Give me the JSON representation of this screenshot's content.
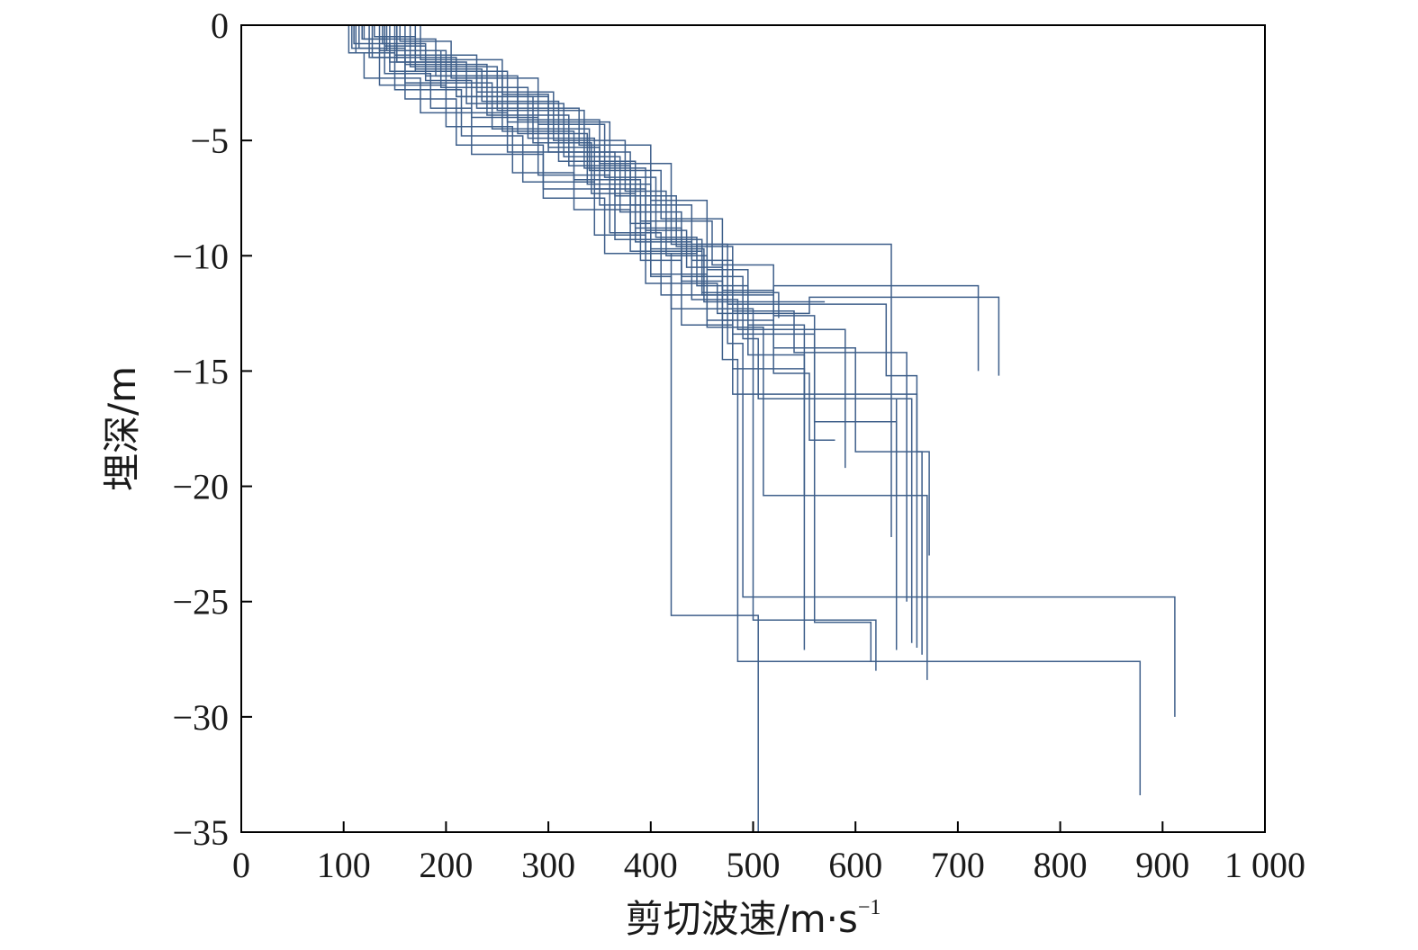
{
  "chart_data": {
    "type": "line",
    "title": "",
    "xlabel": "剪切波速/m·s",
    "xlabel_exponent": "−1",
    "ylabel": "埋深/m",
    "xlim": [
      0,
      1000
    ],
    "ylim": [
      -35,
      0
    ],
    "x_ticks": [
      0,
      100,
      200,
      300,
      400,
      500,
      600,
      700,
      800,
      900,
      1000
    ],
    "x_tick_labels": [
      "0",
      "100",
      "200",
      "300",
      "400",
      "500",
      "600",
      "700",
      "800",
      "900",
      "1 000"
    ],
    "y_ticks": [
      0,
      -5,
      -10,
      -15,
      -20,
      -25,
      -30,
      -35
    ],
    "y_tick_labels": [
      "0",
      "−5",
      "−10",
      "−15",
      "−20",
      "−25",
      "−30",
      "−35"
    ],
    "grid": false,
    "series_color": "#3e5f8a",
    "series": [
      {
        "layers": [
          [
            105,
            0
          ],
          [
            120,
            -1.2
          ],
          [
            175,
            -2.3
          ],
          [
            260,
            -3.8
          ],
          [
            380,
            -5.5
          ],
          [
            440,
            -7.8
          ],
          [
            480,
            -10.2
          ],
          [
            560,
            -13.4
          ],
          [
            640,
            -17.2
          ],
          [
            670,
            -20.4
          ],
          [
            670,
            -28.4
          ]
        ]
      },
      {
        "layers": [
          [
            110,
            0
          ],
          [
            145,
            -0.8
          ],
          [
            230,
            -2.0
          ],
          [
            330,
            -3.6
          ],
          [
            400,
            -5.2
          ],
          [
            455,
            -7.6
          ],
          [
            495,
            -10.6
          ],
          [
            550,
            -13.0
          ],
          [
            655,
            -16.2
          ],
          [
            655,
            -26.8
          ]
        ]
      },
      {
        "layers": [
          [
            115,
            0
          ],
          [
            160,
            -1.0
          ],
          [
            245,
            -2.5
          ],
          [
            340,
            -4.5
          ],
          [
            410,
            -6.3
          ],
          [
            470,
            -8.4
          ],
          [
            520,
            -11.5
          ],
          [
            600,
            -14.0
          ],
          [
            665,
            -18.5
          ],
          [
            665,
            -27.3
          ]
        ]
      },
      {
        "layers": [
          [
            120,
            0
          ],
          [
            190,
            -0.6
          ],
          [
            270,
            -2.2
          ],
          [
            350,
            -4.1
          ],
          [
            420,
            -6.0
          ],
          [
            475,
            -9.5
          ],
          [
            630,
            -12.1
          ],
          [
            660,
            -15.2
          ],
          [
            672,
            -18.5
          ],
          [
            672,
            -23.0
          ]
        ]
      },
      {
        "layers": [
          [
            125,
            0
          ],
          [
            210,
            -1.4
          ],
          [
            300,
            -3.1
          ],
          [
            365,
            -5.5
          ],
          [
            425,
            -7.4
          ],
          [
            480,
            -9.6
          ],
          [
            540,
            -12.4
          ],
          [
            650,
            -14.2
          ],
          [
            650,
            -25.0
          ]
        ]
      },
      {
        "layers": [
          [
            135,
            0
          ],
          [
            200,
            -1.1
          ],
          [
            280,
            -2.7
          ],
          [
            345,
            -4.9
          ],
          [
            395,
            -7.1
          ],
          [
            445,
            -9.9
          ],
          [
            635,
            -9.5
          ],
          [
            635,
            -22.2
          ]
        ]
      },
      {
        "layers": [
          [
            130,
            0
          ],
          [
            170,
            -0.5
          ],
          [
            235,
            -1.9
          ],
          [
            310,
            -3.3
          ],
          [
            385,
            -5.9
          ],
          [
            430,
            -8.8
          ],
          [
            490,
            -10.9
          ],
          [
            505,
            -13.6
          ],
          [
            640,
            -16.2
          ],
          [
            640,
            -27.1
          ]
        ]
      },
      {
        "layers": [
          [
            140,
            0
          ],
          [
            180,
            -0.9
          ],
          [
            225,
            -2.4
          ],
          [
            290,
            -4.0
          ],
          [
            360,
            -6.5
          ],
          [
            410,
            -9.0
          ],
          [
            475,
            -11.7
          ],
          [
            490,
            -13.8
          ],
          [
            825,
            -24.8
          ],
          [
            912,
            -24.8
          ],
          [
            912,
            -30.0
          ]
        ]
      },
      {
        "layers": [
          [
            145,
            0
          ],
          [
            220,
            -1.6
          ],
          [
            315,
            -3.4
          ],
          [
            370,
            -5.7
          ],
          [
            430,
            -8.1
          ],
          [
            470,
            -11.1
          ],
          [
            485,
            -14.5
          ],
          [
            485,
            -27.6
          ],
          [
            878,
            -27.6
          ],
          [
            878,
            -33.4
          ]
        ]
      },
      {
        "layers": [
          [
            150,
            0
          ],
          [
            230,
            -1.3
          ],
          [
            305,
            -2.9
          ],
          [
            375,
            -5.0
          ],
          [
            415,
            -7.2
          ],
          [
            455,
            -10.0
          ],
          [
            480,
            -12.8
          ],
          [
            500,
            -16.0
          ],
          [
            660,
            -16.0
          ],
          [
            660,
            -27.0
          ]
        ]
      },
      {
        "layers": [
          [
            155,
            0
          ],
          [
            205,
            -0.7
          ],
          [
            290,
            -2.3
          ],
          [
            355,
            -4.3
          ],
          [
            405,
            -6.6
          ],
          [
            445,
            -9.2
          ],
          [
            495,
            -11.3
          ],
          [
            550,
            -14.3
          ],
          [
            550,
            -27.1
          ]
        ]
      },
      {
        "layers": [
          [
            160,
            0
          ],
          [
            240,
            -1.7
          ],
          [
            320,
            -3.9
          ],
          [
            380,
            -6.1
          ],
          [
            400,
            -8.6
          ],
          [
            420,
            -10.9
          ],
          [
            420,
            -25.6
          ],
          [
            505,
            -25.6
          ],
          [
            505,
            -35
          ]
        ]
      },
      {
        "layers": [
          [
            165,
            0
          ],
          [
            250,
            -1.8
          ],
          [
            335,
            -3.7
          ],
          [
            395,
            -6.2
          ],
          [
            435,
            -8.9
          ],
          [
            470,
            -10.5
          ],
          [
            520,
            -12.8
          ],
          [
            555,
            -15.1
          ],
          [
            580,
            -18.0
          ]
        ]
      },
      {
        "layers": [
          [
            170,
            0
          ],
          [
            260,
            -2.0
          ],
          [
            360,
            -4.2
          ],
          [
            385,
            -6.9
          ],
          [
            440,
            -9.4
          ],
          [
            485,
            -11.9
          ],
          [
            590,
            -13.2
          ],
          [
            590,
            -19.2
          ]
        ]
      },
      {
        "layers": [
          [
            175,
            0
          ],
          [
            255,
            -1.5
          ],
          [
            300,
            -3.0
          ],
          [
            350,
            -5.3
          ],
          [
            390,
            -7.8
          ],
          [
            430,
            -10.2
          ],
          [
            480,
            -13.0
          ],
          [
            550,
            -14.9
          ],
          [
            560,
            -20.4
          ],
          [
            560,
            -20.4
          ]
        ]
      },
      {
        "layers": [
          [
            108,
            0
          ],
          [
            135,
            -1.0
          ],
          [
            200,
            -2.6
          ],
          [
            265,
            -4.4
          ],
          [
            325,
            -6.4
          ],
          [
            380,
            -8.0
          ],
          [
            450,
            -9.8
          ],
          [
            520,
            -11.7
          ],
          [
            720,
            -11.3
          ],
          [
            720,
            -15.0
          ]
        ]
      },
      {
        "layers": [
          [
            112,
            0
          ],
          [
            150,
            -1.2
          ],
          [
            215,
            -2.8
          ],
          [
            275,
            -4.8
          ],
          [
            345,
            -6.8
          ],
          [
            395,
            -9.1
          ],
          [
            465,
            -11.2
          ],
          [
            555,
            -12.5
          ],
          [
            740,
            -11.8
          ],
          [
            740,
            -15.2
          ]
        ]
      },
      {
        "layers": [
          [
            118,
            0
          ],
          [
            140,
            -0.6
          ],
          [
            185,
            -2.1
          ],
          [
            225,
            -3.6
          ],
          [
            295,
            -5.6
          ],
          [
            355,
            -7.5
          ],
          [
            420,
            -9.9
          ],
          [
            500,
            -12.3
          ],
          [
            500,
            -17.2
          ],
          [
            620,
            -25.8
          ],
          [
            620,
            -28.0
          ]
        ]
      },
      {
        "layers": [
          [
            128,
            0
          ],
          [
            160,
            -1.4
          ],
          [
            210,
            -3.2
          ],
          [
            295,
            -5.2
          ],
          [
            365,
            -7.1
          ],
          [
            400,
            -9.3
          ],
          [
            455,
            -10.8
          ],
          [
            510,
            -13.1
          ],
          [
            510,
            -20.4
          ],
          [
            670,
            -20.4
          ]
        ]
      },
      {
        "layers": [
          [
            138,
            0
          ],
          [
            180,
            -0.8
          ],
          [
            255,
            -2.2
          ],
          [
            325,
            -4.6
          ],
          [
            390,
            -6.7
          ],
          [
            460,
            -8.5
          ],
          [
            520,
            -10.4
          ],
          [
            560,
            -12.6
          ],
          [
            615,
            -25.9
          ],
          [
            615,
            -27.6
          ]
        ]
      },
      {
        "layers": [
          [
            142,
            0
          ],
          [
            195,
            -1.1
          ],
          [
            270,
            -2.7
          ],
          [
            338,
            -4.7
          ],
          [
            400,
            -6.9
          ],
          [
            452,
            -9.7
          ],
          [
            530,
            -12.0
          ],
          [
            570,
            -12.0
          ]
        ]
      },
      {
        "layers": [
          [
            152,
            0
          ],
          [
            210,
            -1.6
          ],
          [
            285,
            -3.1
          ],
          [
            342,
            -5.1
          ],
          [
            385,
            -7.3
          ],
          [
            450,
            -9.3
          ],
          [
            525,
            -11.6
          ],
          [
            525,
            -12.7
          ]
        ]
      }
    ]
  }
}
